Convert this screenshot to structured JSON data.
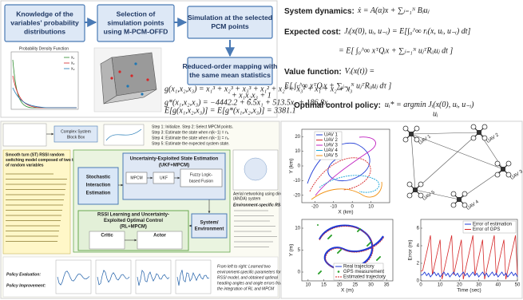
{
  "pipeline": {
    "boxes": [
      {
        "lines": [
          "Knowledge of the",
          "variables' probability",
          "distributions"
        ]
      },
      {
        "lines": [
          "Selection of",
          "simulation points",
          "using M-PCM-OFFD"
        ]
      },
      {
        "lines": [
          "Simulation at the selected",
          "PCM points"
        ]
      },
      {
        "lines": [
          "Reduced-order mapping with",
          "the same mean statistics"
        ]
      }
    ],
    "pdf_plot": {
      "title": "Probability Density Function",
      "legend": [
        "x₁",
        "x₂",
        "x₃"
      ]
    },
    "equations": [
      "g(x₁,x₂,x₃) = x₁³ + x₂³ + x₃³ + x₁² + x₂² + x₃² + x₁ + x₂ + x₃",
      "+ x₁x₂x₃ + 1",
      "g*(x₁,x₂,x₃) = −4442.2 + 6.5x₁ + 513.5x₂ + 186.8x₃",
      "E[g(x₁,x₂,x₃)] = E[g*(x₁,x₂,x₃)] = 3381.1"
    ]
  },
  "formulation": {
    "system_dynamics": {
      "label": "System dynamics:",
      "eq": "ẋ = A(α)x + ∑ⱼ₌₁ᴺ Bⱼuⱼ"
    },
    "expected_cost": {
      "label": "Expected cost:",
      "lines": [
        "Jᵢ(x(0), uᵢ, u₋ᵢ) = E[∫₀^∞ rᵢ(x, uᵢ, u₋ᵢ) dt]",
        "= E[ ∫₀^∞ xᵀQᵢx + ∑ⱼ₌₁ᴺ uⱼᵀRᵢⱼuⱼ dt ]"
      ]
    },
    "value_function": {
      "label": "Value function:",
      "lines": [
        "Vᵢ(x(t)) =",
        "E[ ∫ₜ^∞ xᵀQᵢx + ∑ⱼ₌₁ᴺ uⱼᵀRᵢⱼuⱼ dτ ]"
      ]
    },
    "optimal_policy": {
      "label": "Optimal control policy:",
      "eq": "uᵢ* = argmin Jᵢ(x(0), uᵢ, u₋ᵢ)",
      "under": "uᵢ"
    }
  },
  "framework": {
    "header": [
      "Complex System",
      "Block Box"
    ],
    "steps": [
      "Step 1: Initialize. Step 2: Select MPCM points.",
      "Step 3: Estimate the state when n(k−1) = n₁",
      "Step 4: Estimate the state when n(k−1) = n₂",
      "Step 5: Estimate the expected system state."
    ],
    "left_panel": [
      "Smooth turn (ST) RSSI random",
      "switching model composed of two types",
      "of random variables"
    ],
    "stochastic": [
      "Stochastic",
      "Interaction",
      "Estimation"
    ],
    "state_estimation": [
      "Uncertainty-Exploited State Estimation",
      "(UKF+MPCM)"
    ],
    "state_blocks": [
      "MPCM",
      "UKF",
      "Fuzzy Logic-",
      "based Fusion"
    ],
    "control": [
      "RSSI Learning and Uncertainty-",
      "Exploited Optimal Control",
      "(RL+MPCM)"
    ],
    "critic": "Critic",
    "actor": "Actor",
    "system": [
      "System/",
      "Environment"
    ],
    "anda": [
      "Aerial networking using directional antennas",
      "(ANDA) system"
    ],
    "rssi_model": "Environment-specific RSSI model:",
    "policy_eval": "Policy Evaluation:",
    "policy_improve": "Policy Improvement:",
    "note": [
      "From left to right: Learned two",
      "environment-specific parameters for",
      "RSSI model, and obtained optimal",
      "heading angles and angle errors from",
      "the integration of RL and MPCM"
    ]
  },
  "results": {
    "uav_plot": {
      "legend": [
        "UAV 1",
        "UAV 2",
        "UAV 3",
        "UAV 4",
        "UAV 5"
      ],
      "x_label": "X (km)",
      "y_label": "Y (km)",
      "xticks": [
        -20,
        -10,
        0,
        10
      ],
      "yticks": [
        -20,
        -10,
        0,
        10,
        20
      ]
    },
    "network": {
      "nodes": [
        "UAV 1",
        "UAV 2",
        "UAV 3",
        "UAV 4",
        "UAV 5"
      ]
    },
    "trajectory_plot": {
      "legend": [
        "Real trajectory",
        "GPS measurement",
        "Estimated trajectory"
      ],
      "x_label": "X (m)",
      "y_label": "Y (m)",
      "xticks": [
        10,
        15,
        20,
        25,
        30,
        35
      ],
      "yticks": [
        0,
        5,
        10
      ]
    },
    "error_plot": {
      "legend": [
        "Error of estimation",
        "Error of GPS"
      ],
      "x_label": "Time (sec)",
      "y_label": "Error (m)",
      "xticks": [
        0,
        10,
        20,
        30,
        40,
        50
      ],
      "yticks": [
        0,
        2,
        4,
        6
      ]
    }
  }
}
